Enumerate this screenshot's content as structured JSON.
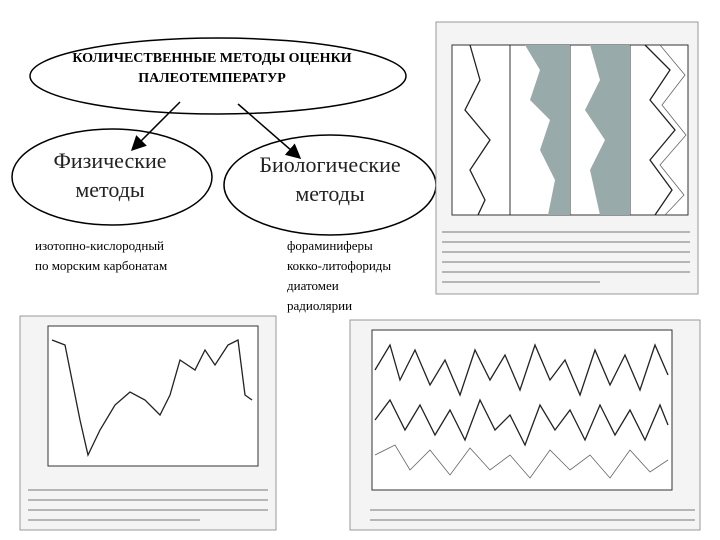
{
  "header": {
    "title": [
      "КОЛИЧЕСТВЕННЫЕ МЕТОДЫ ОЦЕНКИ",
      "ПАЛЕОТЕМПЕРАТУР"
    ]
  },
  "left": {
    "title": [
      "Физические",
      "методы"
    ],
    "items": [
      "изотопно-кислородный",
      "по морским карбонатам"
    ]
  },
  "right": {
    "title": [
      "Биологические",
      "методы"
    ],
    "items": [
      "фораминиферы",
      "кокко-литофориды",
      "диатомеи",
      "радиолярии"
    ]
  }
}
